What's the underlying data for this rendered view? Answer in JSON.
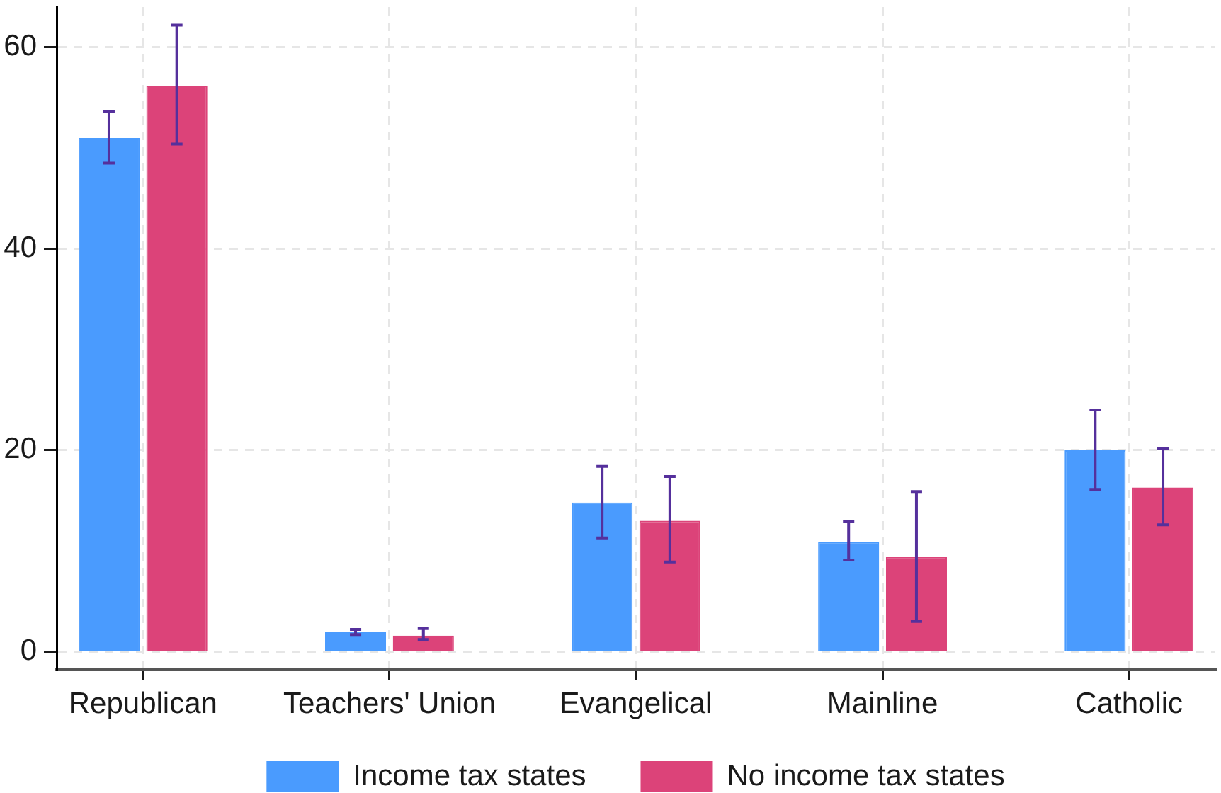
{
  "chart_data": {
    "type": "bar",
    "categories": [
      "Republican",
      "Teachers' Union",
      "Evangelical",
      "Mainline",
      "Catholic"
    ],
    "series": [
      {
        "name": "Income tax states",
        "color": "#4a9bfe",
        "values": [
          51,
          2,
          14.8,
          10.9,
          20
        ],
        "errors": [
          [
            48.5,
            53.6
          ],
          [
            1.7,
            2.2
          ],
          [
            11.3,
            18.4
          ],
          [
            9.1,
            12.9
          ],
          [
            16.1,
            24
          ]
        ]
      },
      {
        "name": "No income tax states",
        "color": "#dc4379",
        "values": [
          56.2,
          1.6,
          13,
          9.4,
          16.3
        ],
        "errors": [
          [
            50.4,
            62.2
          ],
          [
            1.2,
            2.3
          ],
          [
            8.9,
            17.4
          ],
          [
            3,
            15.9
          ],
          [
            12.6,
            20.2
          ]
        ]
      }
    ],
    "ylim": [
      -1.8,
      64
    ],
    "yticks": [
      0,
      20,
      40,
      60
    ],
    "grid": true,
    "legend": "bottom"
  }
}
